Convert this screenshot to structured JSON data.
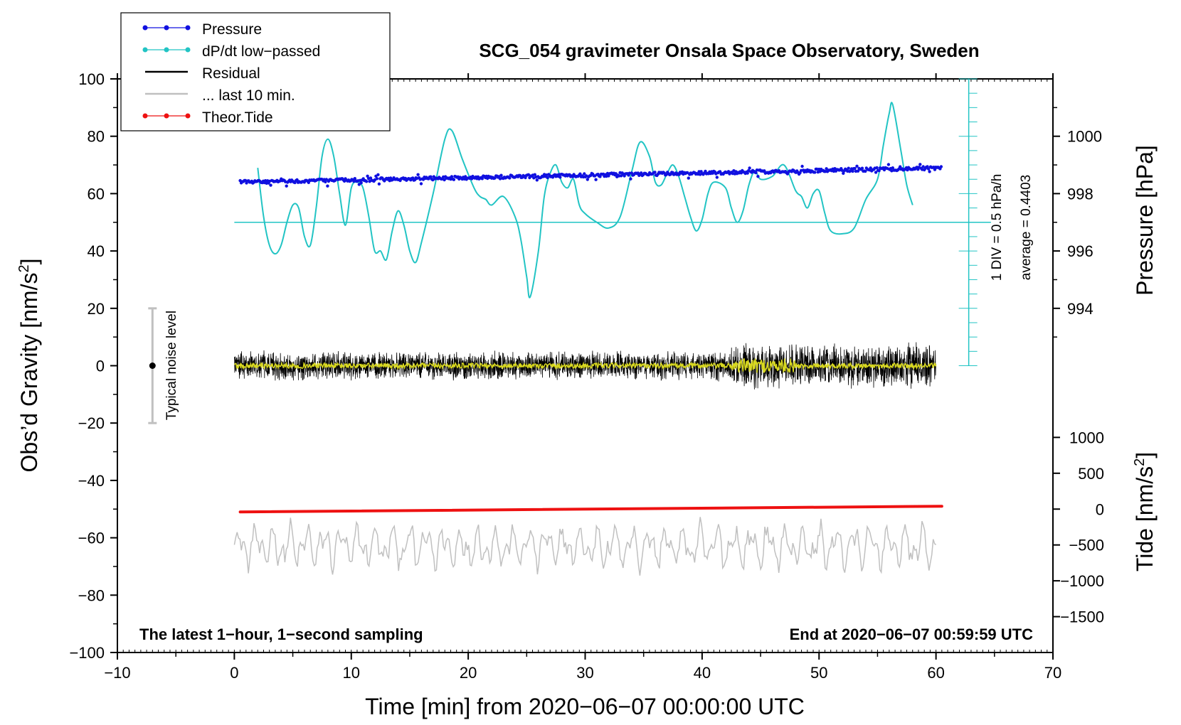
{
  "chart_data": {
    "type": "line",
    "title": "SCG_054 gravimeter Onsala Space Observatory, Sweden",
    "xlabel": "Time [min] from 2020−06−07 00:00:00 UTC",
    "ylabel_left": "Obs’d Gravity [nm/s",
    "ylabel_left_sup": "2",
    "ylabel_left_end": "]",
    "ylabel_right_pressure": "Pressure [hPa]",
    "ylabel_right_tide": "Tide [nm/s",
    "ylabel_right_tide_sup": "2",
    "ylabel_right_tide_end": "]",
    "xlim": [
      -10,
      70
    ],
    "ylim": [
      -100,
      100
    ],
    "x_ticks": [
      {
        "v": -10,
        "label": "−10"
      },
      {
        "v": 0,
        "label": "0"
      },
      {
        "v": 10,
        "label": "10"
      },
      {
        "v": 20,
        "label": "20"
      },
      {
        "v": 30,
        "label": "30"
      },
      {
        "v": 40,
        "label": "40"
      },
      {
        "v": 50,
        "label": "50"
      },
      {
        "v": 60,
        "label": "60"
      },
      {
        "v": 70,
        "label": "70"
      }
    ],
    "y_ticks": [
      {
        "v": 100,
        "label": "100"
      },
      {
        "v": 80,
        "label": "80"
      },
      {
        "v": 60,
        "label": "60"
      },
      {
        "v": 40,
        "label": "40"
      },
      {
        "v": 20,
        "label": "20"
      },
      {
        "v": 0,
        "label": "0"
      },
      {
        "v": -20,
        "label": "−20"
      },
      {
        "v": -40,
        "label": "−40"
      },
      {
        "v": -60,
        "label": "−60"
      },
      {
        "v": -80,
        "label": "−80"
      },
      {
        "v": -100,
        "label": "−100"
      }
    ],
    "pressure_axis": {
      "map": {
        "hpa_at_y0": 992,
        "nms2_per_hpa": 10
      },
      "ticks": [
        {
          "v": 1000,
          "label": "1000"
        },
        {
          "v": 998,
          "label": "998"
        },
        {
          "v": 996,
          "label": "996"
        },
        {
          "v": 994,
          "label": "994"
        }
      ]
    },
    "tide_axis": {
      "map": {
        "tide_at_y_minus50": 0,
        "tide_per_nms2": 40
      },
      "ticks": [
        {
          "v": 1000,
          "label": "1000"
        },
        {
          "v": 500,
          "label": "500"
        },
        {
          "v": 0,
          "label": "0"
        },
        {
          "v": -500,
          "label": "−500"
        },
        {
          "v": -1000,
          "label": "−1000"
        },
        {
          "v": -1500,
          "label": "−1500"
        }
      ]
    },
    "legend": [
      {
        "label": "Pressure",
        "color": "#1010e0",
        "marker": true
      },
      {
        "label": "dP/dt low−passed",
        "color": "#22c4c4",
        "marker": true
      },
      {
        "label": "Residual",
        "color": "#000000",
        "marker": false
      },
      {
        "label": "... last 10 min.",
        "color": "#c0c0c0",
        "marker": false
      },
      {
        "label": "Theor.Tide",
        "color": "#ee1111",
        "marker": true
      }
    ],
    "series": [
      {
        "name": "Pressure",
        "color": "#1010e0",
        "unit": "hPa",
        "x_range": [
          0.5,
          60.5
        ],
        "start_hpa": 998.4,
        "end_hpa": 998.9,
        "scatter_hpa": 0.12
      },
      {
        "name": "dP/dt low-passed",
        "color": "#22c4c4",
        "x": [
          2.0,
          2.5,
          3.0,
          3.5,
          4.0,
          4.5,
          5.0,
          5.5,
          6.0,
          6.5,
          7.0,
          7.5,
          8.0,
          8.5,
          9.0,
          9.5,
          10.0,
          10.5,
          11.0,
          11.5,
          12.0,
          12.5,
          13.0,
          13.5,
          14.0,
          14.5,
          15.0,
          15.5,
          16.0,
          17.0,
          18.0,
          18.6,
          19.5,
          20.5,
          21.0,
          21.5,
          22.0,
          23.0,
          24.0,
          24.5,
          25.0,
          25.3,
          26.0,
          26.5,
          27.0,
          27.5,
          28.0,
          28.5,
          29.0,
          29.5,
          30.0,
          31.0,
          32.0,
          33.0,
          34.0,
          34.7,
          35.5,
          36.0,
          36.5,
          37.0,
          37.5,
          38.0,
          38.5,
          39.0,
          39.5,
          40.0,
          40.5,
          41.0,
          42.0,
          42.5,
          43.0,
          43.5,
          44.0,
          44.5,
          45.0,
          46.0,
          47.0,
          48.0,
          48.5,
          49.0,
          49.5,
          50.0,
          50.5,
          51.0,
          52.0,
          53.0,
          54.0,
          55.0,
          55.5,
          56.0,
          56.3,
          57.0,
          57.5,
          58.0
        ],
        "y": [
          69,
          52,
          42,
          39,
          42,
          50,
          56,
          55,
          45,
          42,
          55,
          73,
          79,
          73,
          60,
          49,
          62,
          64,
          62,
          52,
          40,
          40,
          37,
          47,
          54,
          49,
          40,
          36,
          43,
          60,
          79,
          82,
          72,
          62,
          59,
          58,
          56,
          59,
          52,
          44,
          31,
          24,
          40,
          59,
          67,
          70,
          64,
          62,
          65,
          56,
          53,
          50,
          48,
          52,
          68,
          78,
          73,
          64,
          63,
          67,
          70,
          66,
          59,
          52,
          47,
          51,
          60,
          64,
          62,
          55,
          50,
          54,
          63,
          68,
          65,
          66,
          70,
          61,
          59,
          55,
          60,
          61,
          53,
          47,
          46,
          48,
          58,
          65,
          77,
          88,
          91,
          75,
          63,
          56
        ]
      },
      {
        "name": "dP/dt average line",
        "color": "#22c4c4",
        "y_const": 50,
        "x_range": [
          0,
          64.7
        ]
      },
      {
        "name": "Residual",
        "color": "#000000",
        "x_range": [
          0,
          60
        ],
        "center": 0,
        "amplitude": 6,
        "noisy_segment": [
          42.5,
          60
        ]
      },
      {
        "name": "Residual smoothed",
        "color": "#d8d820",
        "x_range": [
          0,
          60
        ],
        "center": 0
      },
      {
        "name": "... last 10 min.",
        "color": "#c0c0c0",
        "x_range": [
          0,
          60
        ],
        "center": -63,
        "amplitude": 8
      },
      {
        "name": "Theor.Tide",
        "color": "#ee1111",
        "unit": "nm/s2",
        "x_range": [
          0.5,
          60.5
        ],
        "start_tide": -40,
        "end_tide": 40
      }
    ],
    "annotations": {
      "div_scale": "1 DIV = 0.5 hPa/h",
      "average": "average = 0.4403",
      "noise": "Typical noise level",
      "noise_range": [
        -20,
        20
      ],
      "bottom_left": "The latest 1−hour, 1−second sampling",
      "bottom_right": "End at 2020−06−07 00:59:59 UTC"
    }
  }
}
